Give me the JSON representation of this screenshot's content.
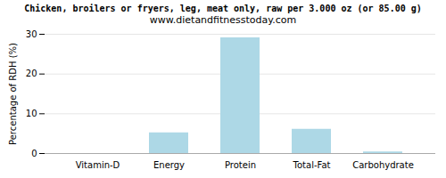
{
  "chart_data": {
    "type": "bar",
    "title": "Chicken, broilers or fryers, leg, meat only, raw per 3.000 oz (or 85.00 g)",
    "subtitle": "www.dietandfitnesstoday.com",
    "ylabel": "Percentage of RDH (%)",
    "categories": [
      "Vitamin-D",
      "Energy",
      "Protein",
      "Total-Fat",
      "Carbohydrate"
    ],
    "values": [
      0.0,
      5.2,
      29.1,
      6.1,
      0.4
    ],
    "color": "#add8e6",
    "ylim": [
      0,
      30
    ],
    "yticks": [
      0,
      10,
      20,
      30
    ],
    "grid": true
  }
}
